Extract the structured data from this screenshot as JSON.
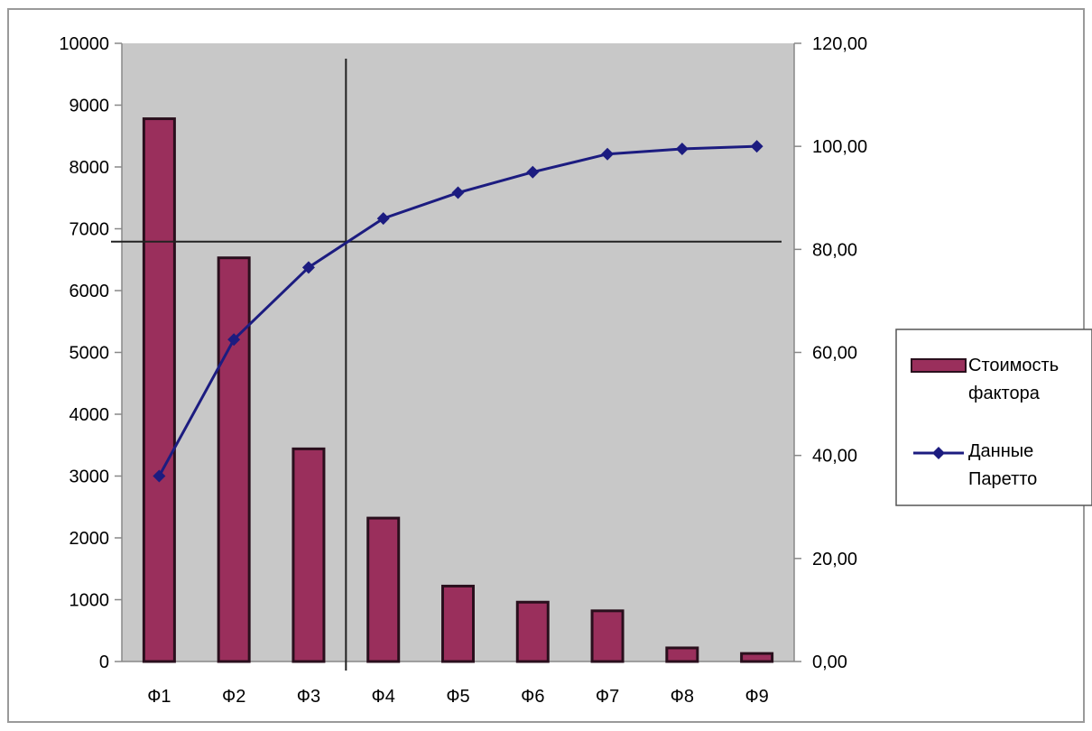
{
  "chart_data": {
    "type": "bar",
    "categories": [
      "Ф1",
      "Ф2",
      "Ф3",
      "Ф4",
      "Ф5",
      "Ф6",
      "Ф7",
      "Ф8",
      "Ф9"
    ],
    "series": [
      {
        "name": "Стоимость фактора",
        "type": "bar",
        "axis": "left",
        "values": [
          8780,
          6530,
          3440,
          2320,
          1220,
          960,
          820,
          220,
          130
        ]
      },
      {
        "name": "Данные Паретто",
        "type": "line",
        "axis": "right",
        "values": [
          36.0,
          62.5,
          76.5,
          86.0,
          91.0,
          95.0,
          98.5,
          99.5,
          100.0
        ]
      }
    ],
    "y_left": {
      "lim": [
        0,
        10000
      ],
      "ticks": [
        0,
        1000,
        2000,
        3000,
        4000,
        5000,
        6000,
        7000,
        8000,
        9000,
        10000
      ],
      "tick_labels": [
        "0",
        "1000",
        "2000",
        "3000",
        "4000",
        "5000",
        "6000",
        "7000",
        "8000",
        "9000",
        "10000"
      ]
    },
    "y_right": {
      "lim": [
        0,
        120
      ],
      "ticks": [
        0,
        20,
        40,
        60,
        80,
        100,
        120
      ],
      "tick_labels": [
        "0,00",
        "20,00",
        "40,00",
        "60,00",
        "80,00",
        "100,00",
        "120,00"
      ]
    },
    "reference_lines": {
      "horizontal_right_value": 81.5,
      "vertical_between": [
        "Ф3",
        "Ф4"
      ]
    },
    "grid": false,
    "legend_position": "right",
    "legend_labels": {
      "bar_line1": "Стоимость",
      "bar_line2": "фактора",
      "line_line1": "Данные",
      "line_line2": "Паретто"
    },
    "colors": {
      "bar_fill": "#9a2f5c",
      "bar_stroke": "#2a0f1d",
      "line": "#1c1c80",
      "plot_bg": "#c8c8c8",
      "ref_line": "#222222"
    }
  }
}
